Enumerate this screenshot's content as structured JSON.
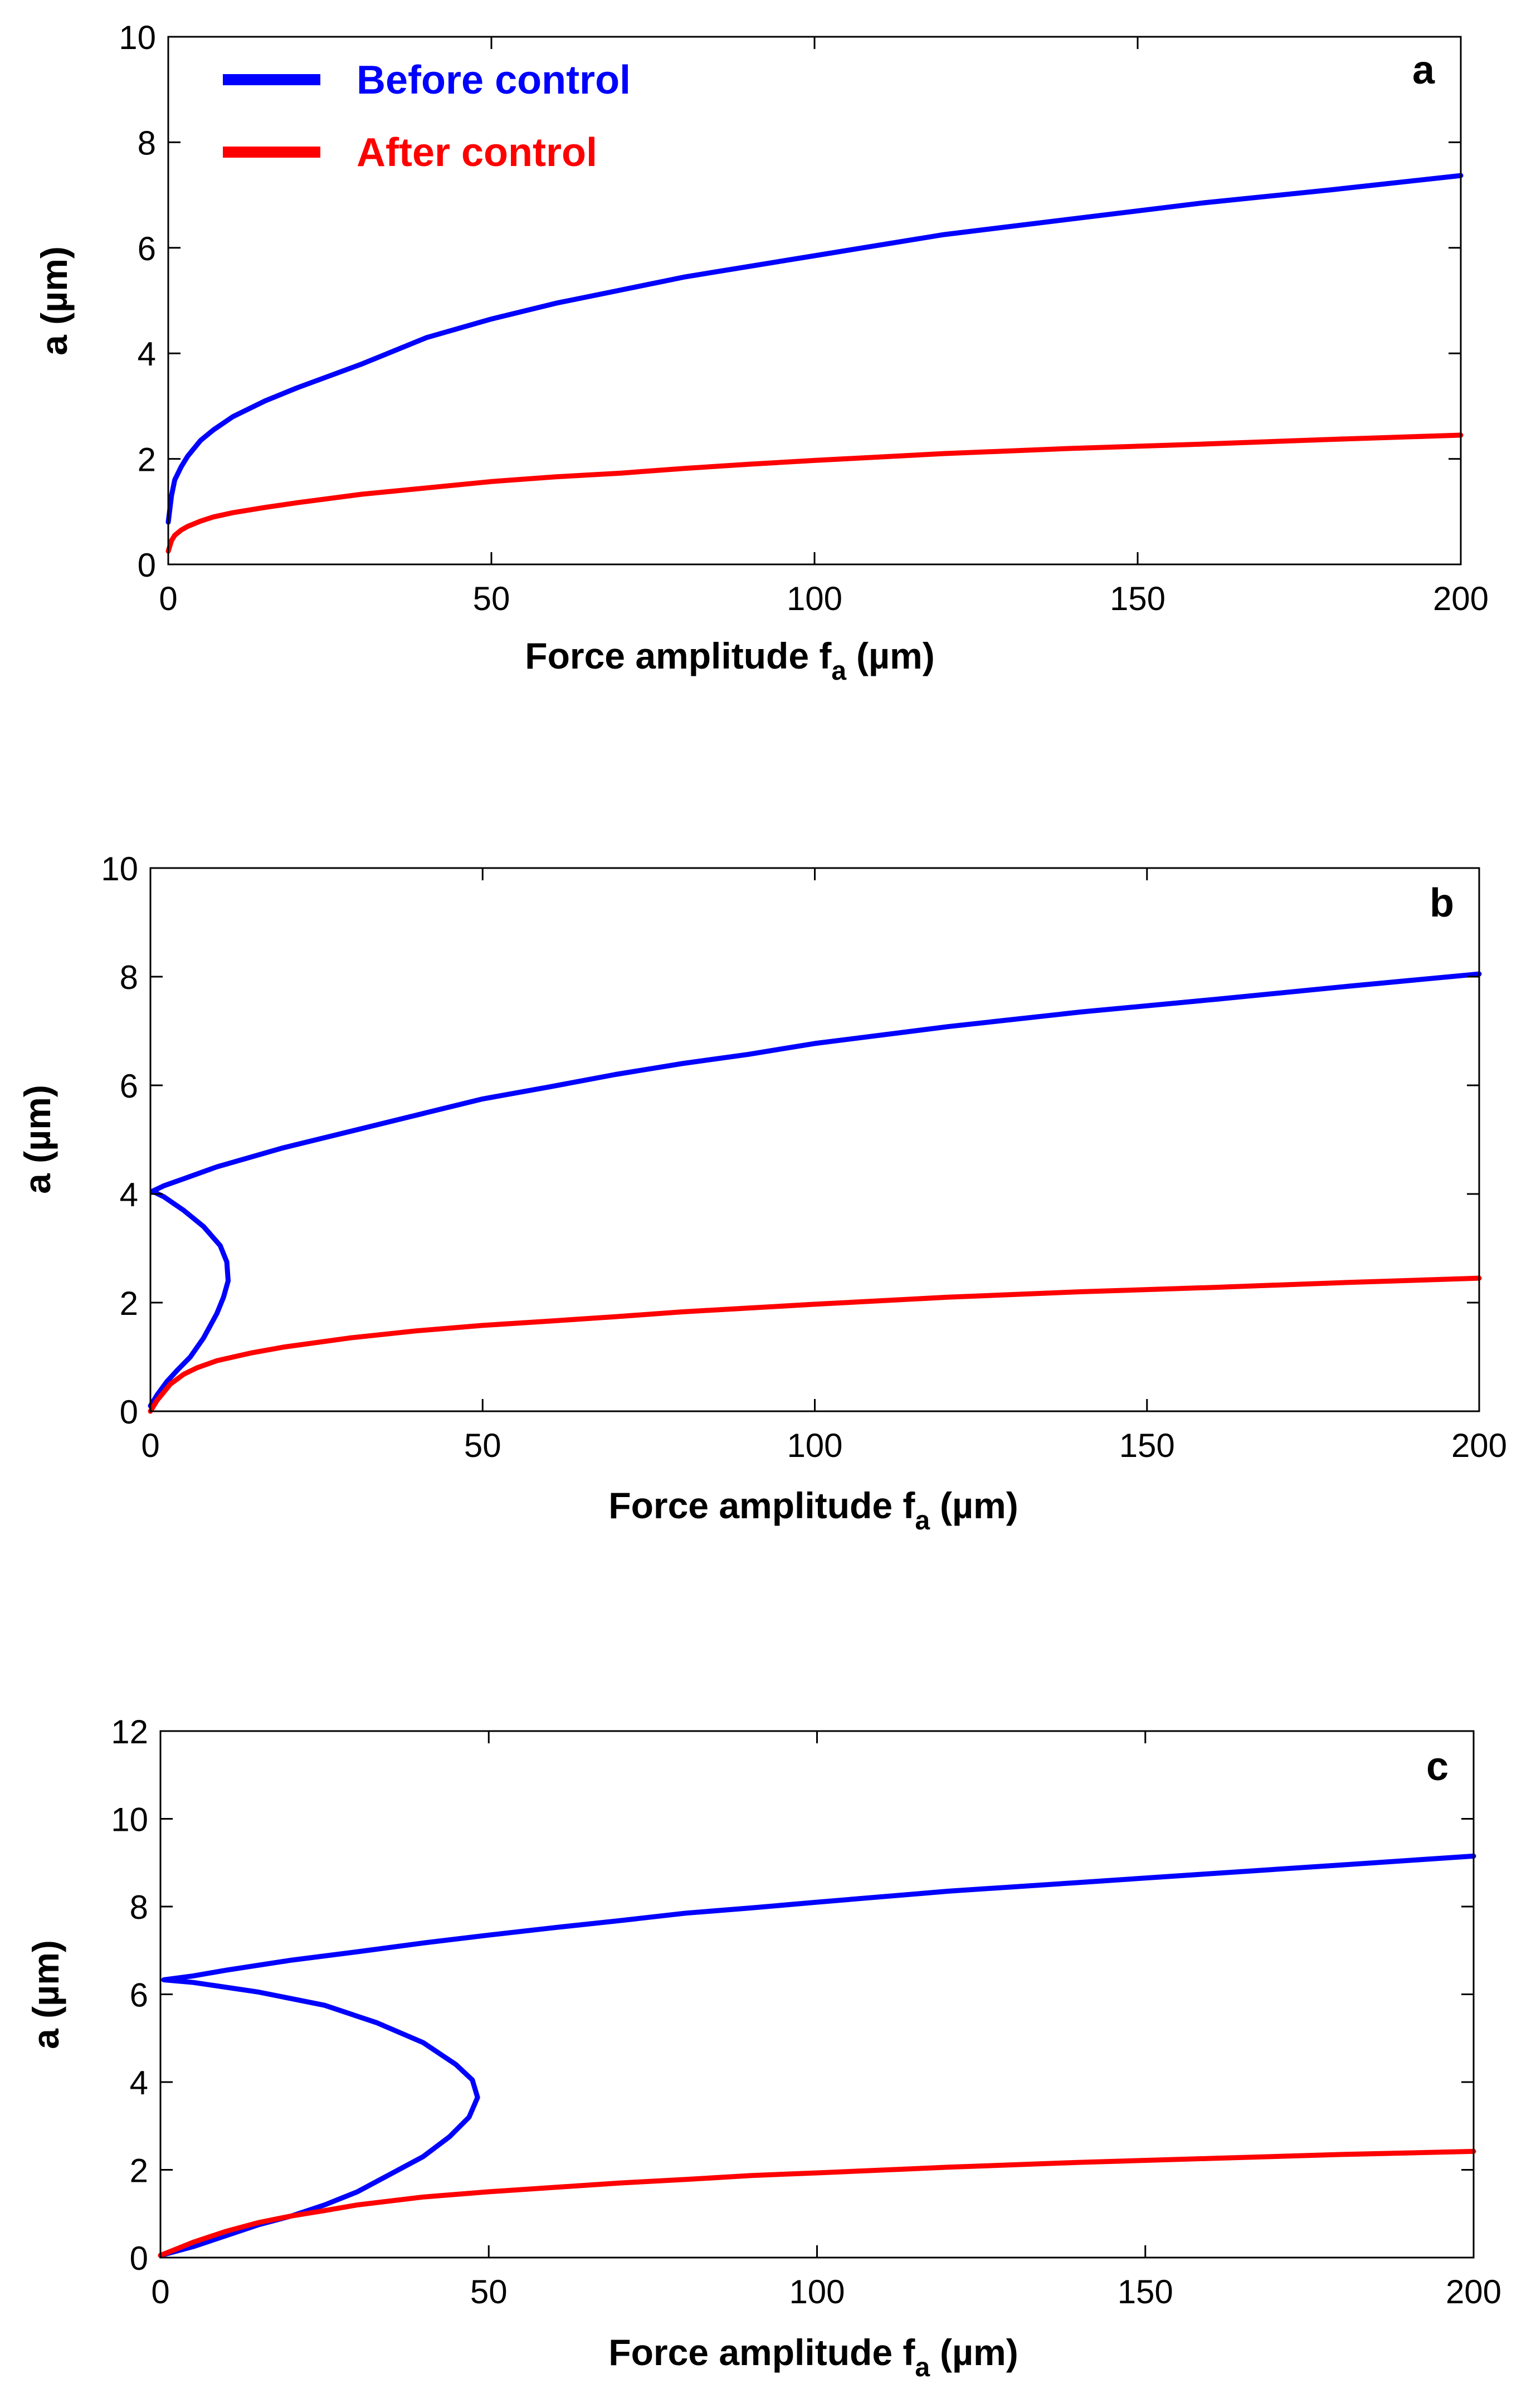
{
  "colors": {
    "before": "#0000ff",
    "after": "#ff0000",
    "axis": "#000000"
  },
  "legend": {
    "before_label": "Before control",
    "after_label": "After control",
    "placement": "top-left of panel a"
  },
  "chart_data": [
    {
      "type": "line",
      "panel_label": "a",
      "xlabel": "Force amplitude f",
      "xlabel_sub": "a",
      "xlabel_unit": "(µm)",
      "ylabel": "a (µm)",
      "xlim": [
        0,
        200
      ],
      "ylim": [
        0,
        10
      ],
      "xticks": [
        0,
        50,
        100,
        150,
        200
      ],
      "yticks": [
        0,
        2,
        4,
        6,
        8,
        10
      ],
      "grid": false,
      "series": [
        {
          "name": "Before control",
          "color_key": "before",
          "points": [
            [
              0.0,
              0.8
            ],
            [
              0.5,
              1.3
            ],
            [
              1,
              1.6
            ],
            [
              2,
              1.85
            ],
            [
              3,
              2.05
            ],
            [
              5,
              2.35
            ],
            [
              7,
              2.55
            ],
            [
              10,
              2.8
            ],
            [
              15,
              3.1
            ],
            [
              20,
              3.35
            ],
            [
              30,
              3.8
            ],
            [
              40,
              4.3
            ],
            [
              50,
              4.65
            ],
            [
              60,
              4.95
            ],
            [
              70,
              5.2
            ],
            [
              80,
              5.45
            ],
            [
              90,
              5.65
            ],
            [
              100,
              5.85
            ],
            [
              120,
              6.25
            ],
            [
              140,
              6.55
            ],
            [
              160,
              6.85
            ],
            [
              180,
              7.1
            ],
            [
              200,
              7.37
            ]
          ]
        },
        {
          "name": "After control",
          "color_key": "after",
          "points": [
            [
              0.0,
              0.25
            ],
            [
              0.5,
              0.45
            ],
            [
              1,
              0.55
            ],
            [
              2,
              0.65
            ],
            [
              3,
              0.72
            ],
            [
              5,
              0.82
            ],
            [
              7,
              0.9
            ],
            [
              10,
              0.98
            ],
            [
              15,
              1.08
            ],
            [
              20,
              1.17
            ],
            [
              30,
              1.33
            ],
            [
              40,
              1.45
            ],
            [
              50,
              1.57
            ],
            [
              60,
              1.66
            ],
            [
              70,
              1.73
            ],
            [
              80,
              1.82
            ],
            [
              90,
              1.9
            ],
            [
              100,
              1.97
            ],
            [
              120,
              2.1
            ],
            [
              140,
              2.2
            ],
            [
              160,
              2.28
            ],
            [
              180,
              2.37
            ],
            [
              200,
              2.45
            ]
          ]
        }
      ]
    },
    {
      "type": "line",
      "panel_label": "b",
      "xlabel": "Force amplitude f",
      "xlabel_sub": "a",
      "xlabel_unit": "(µm)",
      "ylabel": "a (µm)",
      "xlim": [
        0,
        200
      ],
      "ylim": [
        0,
        10
      ],
      "xticks": [
        0,
        50,
        100,
        150,
        200
      ],
      "yticks": [
        0,
        2,
        4,
        6,
        8,
        10
      ],
      "grid": false,
      "series": [
        {
          "name": "Before control",
          "color_key": "before",
          "points": [
            [
              0,
              0.1
            ],
            [
              1,
              0.3
            ],
            [
              2.5,
              0.55
            ],
            [
              4,
              0.75
            ],
            [
              6,
              1.0
            ],
            [
              8,
              1.35
            ],
            [
              10,
              1.8
            ],
            [
              11,
              2.1
            ],
            [
              11.7,
              2.4
            ],
            [
              11.5,
              2.75
            ],
            [
              10.5,
              3.05
            ],
            [
              8,
              3.4
            ],
            [
              5,
              3.7
            ],
            [
              2,
              3.95
            ],
            [
              0.3,
              4.05
            ],
            [
              2,
              4.15
            ],
            [
              5,
              4.28
            ],
            [
              10,
              4.5
            ],
            [
              20,
              4.85
            ],
            [
              30,
              5.15
            ],
            [
              40,
              5.45
            ],
            [
              50,
              5.75
            ],
            [
              60,
              5.97
            ],
            [
              70,
              6.2
            ],
            [
              80,
              6.4
            ],
            [
              90,
              6.57
            ],
            [
              100,
              6.77
            ],
            [
              120,
              7.08
            ],
            [
              140,
              7.35
            ],
            [
              160,
              7.58
            ],
            [
              180,
              7.82
            ],
            [
              200,
              8.05
            ]
          ]
        },
        {
          "name": "After control",
          "color_key": "after",
          "points": [
            [
              0,
              0.0
            ],
            [
              1,
              0.2
            ],
            [
              2,
              0.35
            ],
            [
              3,
              0.5
            ],
            [
              5,
              0.68
            ],
            [
              7,
              0.8
            ],
            [
              10,
              0.93
            ],
            [
              15,
              1.07
            ],
            [
              20,
              1.18
            ],
            [
              30,
              1.35
            ],
            [
              40,
              1.48
            ],
            [
              50,
              1.58
            ],
            [
              60,
              1.66
            ],
            [
              70,
              1.74
            ],
            [
              80,
              1.83
            ],
            [
              90,
              1.9
            ],
            [
              100,
              1.97
            ],
            [
              120,
              2.1
            ],
            [
              140,
              2.2
            ],
            [
              160,
              2.28
            ],
            [
              180,
              2.37
            ],
            [
              200,
              2.45
            ]
          ]
        }
      ]
    },
    {
      "type": "line",
      "panel_label": "c",
      "xlabel": "Force amplitude f",
      "xlabel_sub": "a",
      "xlabel_unit": "(µm)",
      "ylabel": "a (µm)",
      "xlim": [
        0,
        200
      ],
      "ylim": [
        0,
        12
      ],
      "xticks": [
        0,
        50,
        100,
        150,
        200
      ],
      "yticks": [
        0,
        2,
        4,
        6,
        8,
        10,
        12
      ],
      "grid": false,
      "series": [
        {
          "name": "Before control",
          "color_key": "before",
          "points": [
            [
              0,
              0.05
            ],
            [
              5,
              0.25
            ],
            [
              10,
              0.5
            ],
            [
              15,
              0.75
            ],
            [
              20,
              0.95
            ],
            [
              25,
              1.2
            ],
            [
              30,
              1.5
            ],
            [
              35,
              1.9
            ],
            [
              40,
              2.3
            ],
            [
              44,
              2.75
            ],
            [
              47,
              3.2
            ],
            [
              48.3,
              3.65
            ],
            [
              47.5,
              4.05
            ],
            [
              45,
              4.4
            ],
            [
              40,
              4.9
            ],
            [
              33,
              5.35
            ],
            [
              25,
              5.75
            ],
            [
              15,
              6.05
            ],
            [
              5,
              6.27
            ],
            [
              0.5,
              6.33
            ],
            [
              5,
              6.42
            ],
            [
              10,
              6.55
            ],
            [
              20,
              6.78
            ],
            [
              30,
              6.97
            ],
            [
              40,
              7.17
            ],
            [
              50,
              7.35
            ],
            [
              60,
              7.52
            ],
            [
              70,
              7.68
            ],
            [
              80,
              7.85
            ],
            [
              90,
              7.97
            ],
            [
              100,
              8.1
            ],
            [
              120,
              8.35
            ],
            [
              140,
              8.55
            ],
            [
              160,
              8.75
            ],
            [
              180,
              8.95
            ],
            [
              200,
              9.15
            ]
          ]
        },
        {
          "name": "After control",
          "color_key": "after",
          "points": [
            [
              0,
              0.05
            ],
            [
              5,
              0.35
            ],
            [
              10,
              0.6
            ],
            [
              15,
              0.8
            ],
            [
              20,
              0.95
            ],
            [
              25,
              1.07
            ],
            [
              30,
              1.2
            ],
            [
              40,
              1.38
            ],
            [
              50,
              1.5
            ],
            [
              60,
              1.6
            ],
            [
              70,
              1.7
            ],
            [
              80,
              1.78
            ],
            [
              90,
              1.87
            ],
            [
              100,
              1.93
            ],
            [
              120,
              2.06
            ],
            [
              140,
              2.17
            ],
            [
              160,
              2.26
            ],
            [
              180,
              2.35
            ],
            [
              200,
              2.42
            ]
          ]
        }
      ]
    }
  ]
}
